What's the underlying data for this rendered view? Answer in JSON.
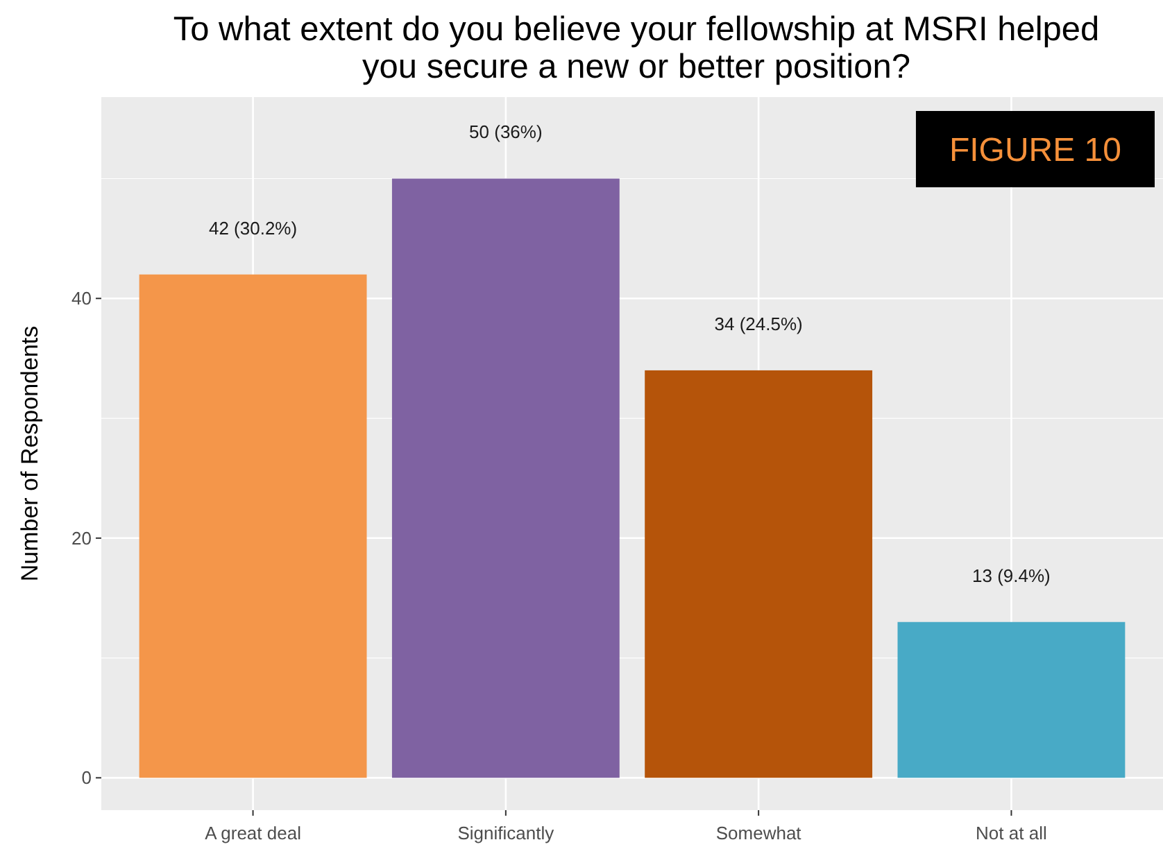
{
  "chart_data": {
    "type": "bar",
    "title": "To what extent do you believe your fellowship at MSRI helped you secure a new or better position?",
    "ylabel": "Number of Respondents",
    "categories": [
      "A great deal",
      "Significantly",
      "Somewhat",
      "Not at all"
    ],
    "values": [
      42,
      50,
      34,
      13
    ],
    "colors": [
      "#f4964a",
      "#7f62a2",
      "#b5540a",
      "#48aac6"
    ],
    "value_labels": [
      "42 (30.2%)",
      "50 (36%)",
      "34 (24.5%)",
      "13 (9.4%)"
    ],
    "annotations": [
      "FIGURE 10"
    ],
    "ylim": [
      -2.7,
      56.8
    ],
    "yticks": [
      0,
      20,
      40
    ],
    "grid": true
  }
}
